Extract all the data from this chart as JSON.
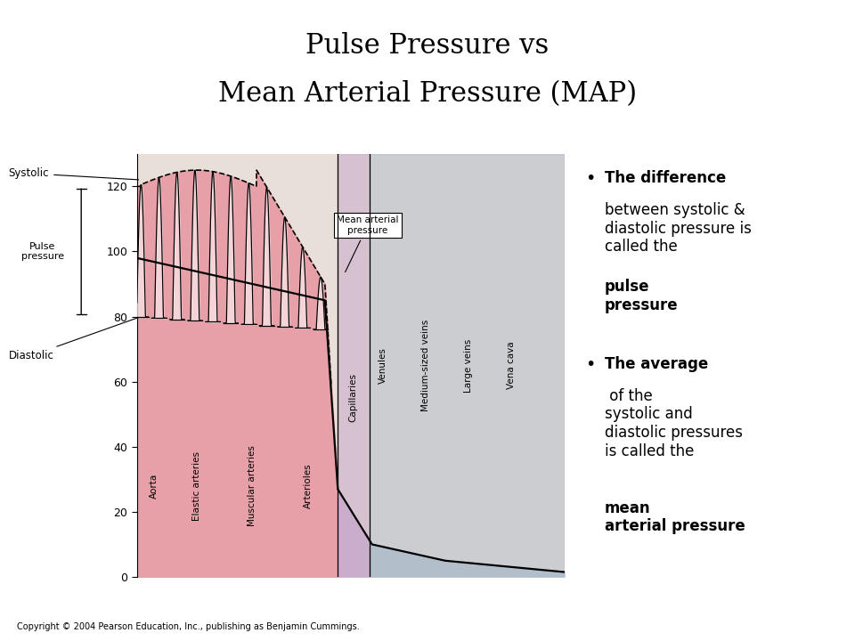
{
  "title_line1": "Pulse Pressure vs",
  "title_line2": "Mean Arterial Pressure (MAP)",
  "title_fontsize": 22,
  "bg_color": "#ffffff",
  "chart_bg_arterial": "#e8e0d8",
  "pink_fill": "#e8a0a8",
  "purple_fill": "#c8a8cc",
  "blue_fill": "#a8b8c8",
  "sections": [
    "Aorta",
    "Elastic arteries",
    "Muscular arteries",
    "Arterioles",
    "Capillaries",
    "Venules",
    "Medium-sized veins",
    "Large veins",
    "Vena cava"
  ],
  "section_x": [
    0.04,
    0.14,
    0.27,
    0.4,
    0.505,
    0.575,
    0.675,
    0.775,
    0.875
  ],
  "div1": 0.47,
  "div2": 0.545,
  "yticks": [
    0,
    20,
    40,
    60,
    80,
    100,
    120
  ],
  "copyright": "Copyright © 2004 Pearson Education, Inc., publishing as Benjamin Cummings.",
  "footnote_fontsize": 7
}
